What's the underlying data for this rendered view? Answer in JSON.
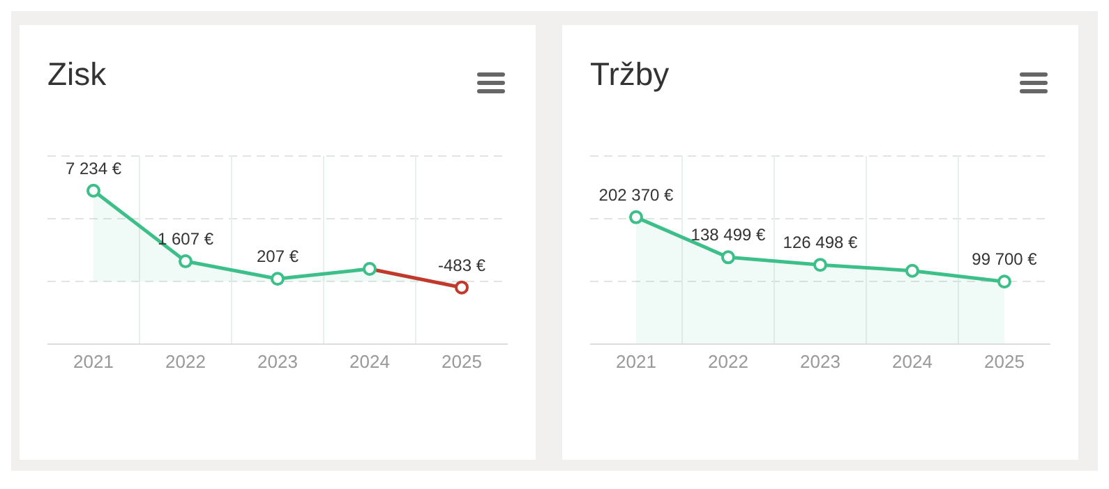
{
  "chart_data": [
    {
      "type": "area",
      "title": "Zisk",
      "categories": [
        "2021",
        "2022",
        "2023",
        "2024",
        "2025"
      ],
      "series": [
        {
          "color": "#3dbf8a",
          "colors": [
            "#3dbf8a",
            "#3dbf8a",
            "#3dbf8a",
            "#3dbf8a",
            "#c0392b"
          ],
          "values": [
            7234,
            1607,
            207,
            1000,
            -483
          ],
          "value_labels": [
            "7 234 €",
            "1 607 €",
            "207 €",
            null,
            "-483 €"
          ]
        }
      ],
      "ylim": [
        -5000,
        10000
      ],
      "yticks": [
        {
          "value": -5000,
          "label": null
        },
        {
          "value": 0,
          "label": null
        },
        {
          "value": 5000,
          "label": null
        },
        {
          "value": 10000,
          "label": null
        }
      ],
      "grid": true,
      "tick_labels": "x",
      "marker": "circle"
    },
    {
      "type": "area",
      "title": "Tržby",
      "categories": [
        "2021",
        "2022",
        "2023",
        "2024",
        "2025"
      ],
      "series": [
        {
          "color": "#3dbf8a",
          "colors": [
            "#3dbf8a",
            "#3dbf8a",
            "#3dbf8a",
            "#3dbf8a",
            "#3dbf8a"
          ],
          "values": [
            202370,
            138499,
            126498,
            117000,
            99700
          ],
          "value_labels": [
            "202 370 €",
            "138 499 €",
            "126 498 €",
            null,
            "99 700 €"
          ]
        }
      ],
      "ylim": [
        0,
        300000
      ],
      "yticks": [
        {
          "value": 0,
          "label": null
        },
        {
          "value": 100000,
          "label": null
        },
        {
          "value": 200000,
          "label": null
        },
        {
          "value": 300000,
          "label": null
        }
      ],
      "grid": true,
      "tick_labels": "x",
      "marker": "circle"
    }
  ]
}
